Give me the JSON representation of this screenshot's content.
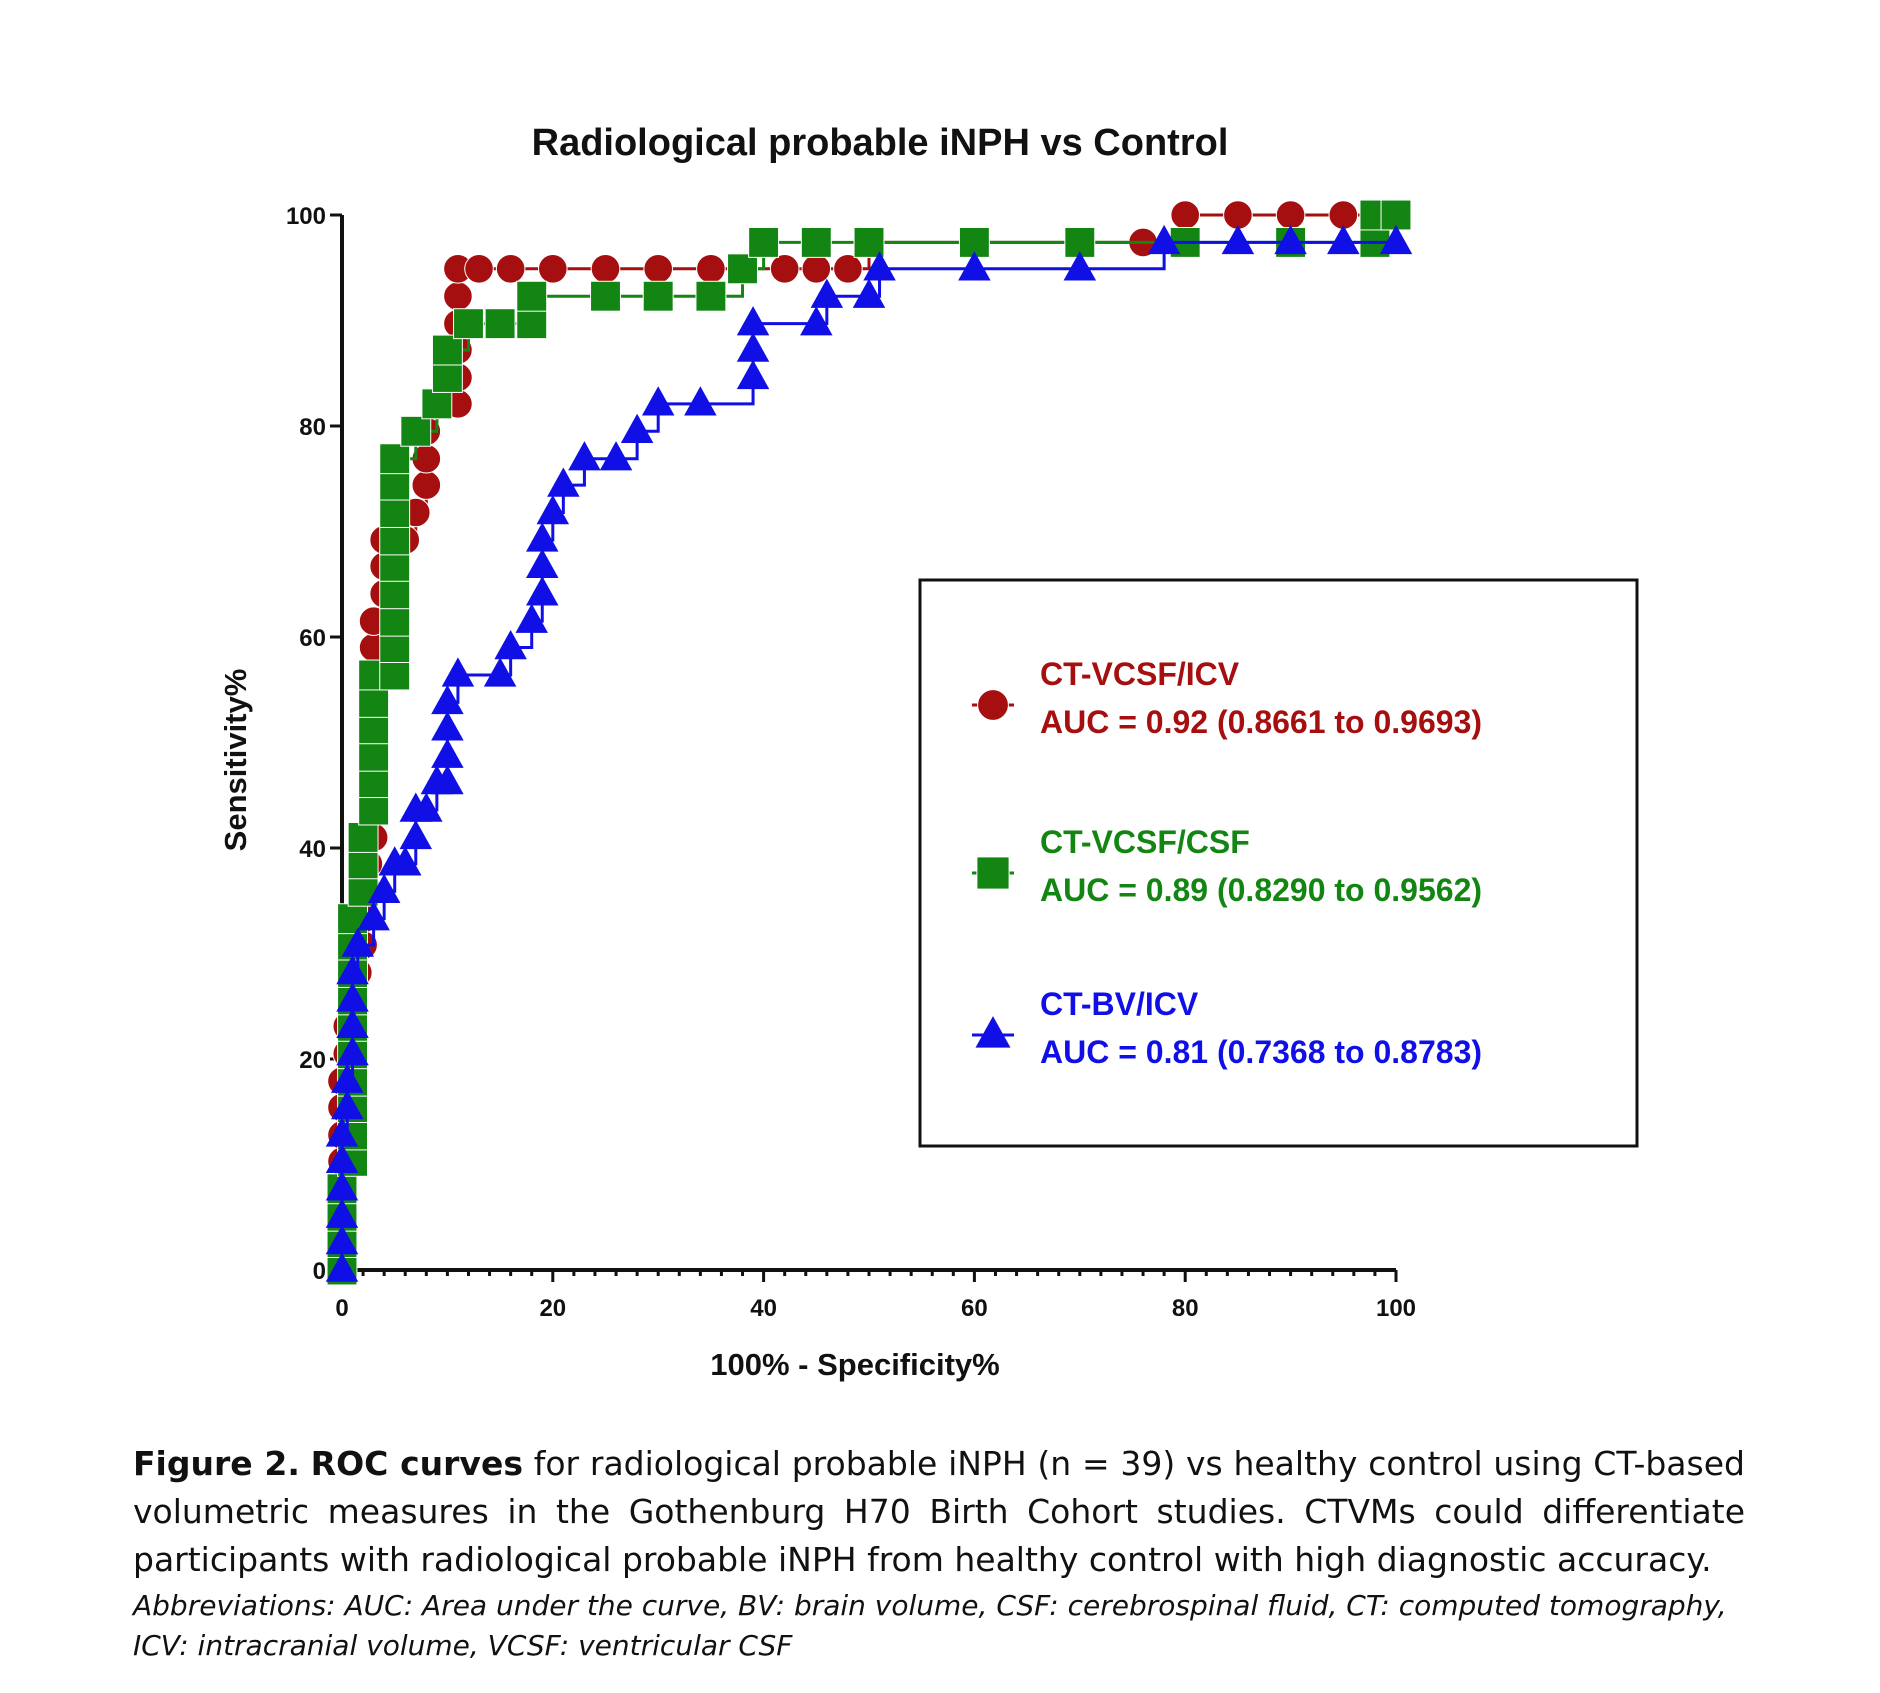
{
  "chart_data": {
    "type": "line",
    "title": "Radiological probable iNPH vs Control",
    "xlabel": "100% - Specificity%",
    "ylabel": "Sensitivity%",
    "xlim": [
      0,
      100
    ],
    "ylim": [
      0,
      100
    ],
    "xticks": [
      "0",
      "20",
      "40",
      "60",
      "80",
      "100"
    ],
    "yticks": [
      "0",
      "20",
      "40",
      "60",
      "80",
      "100"
    ],
    "grid": false,
    "legend_position": "center-right",
    "series": [
      {
        "name": "CT-VCSF/ICV",
        "auc": "AUC = 0.92 (0.8661 to 0.9693)",
        "color": "#A50F0F",
        "marker": "circle",
        "points": [
          [
            0,
            0
          ],
          [
            0,
            2.6
          ],
          [
            0,
            5.1
          ],
          [
            0,
            7.7
          ],
          [
            0,
            10.3
          ],
          [
            0,
            12.8
          ],
          [
            0,
            15.4
          ],
          [
            0,
            17.9
          ],
          [
            0.5,
            20.5
          ],
          [
            0.5,
            23.1
          ],
          [
            1,
            25.6
          ],
          [
            1.5,
            28.2
          ],
          [
            2,
            30.8
          ],
          [
            2,
            33.3
          ],
          [
            2.5,
            35.9
          ],
          [
            2.5,
            38.5
          ],
          [
            3,
            41
          ],
          [
            3,
            43.6
          ],
          [
            3,
            46.2
          ],
          [
            3,
            48.7
          ],
          [
            3,
            51.3
          ],
          [
            3,
            53.8
          ],
          [
            3,
            56.4
          ],
          [
            3,
            59
          ],
          [
            3,
            61.5
          ],
          [
            4,
            64.1
          ],
          [
            4,
            66.7
          ],
          [
            4,
            69.2
          ],
          [
            6,
            69.2
          ],
          [
            7,
            71.8
          ],
          [
            8,
            74.4
          ],
          [
            8,
            76.9
          ],
          [
            8,
            79.5
          ],
          [
            9,
            82.1
          ],
          [
            11,
            82.1
          ],
          [
            11,
            84.6
          ],
          [
            11,
            87.2
          ],
          [
            11,
            89.7
          ],
          [
            11,
            92.3
          ],
          [
            11,
            94.9
          ],
          [
            13,
            94.9
          ],
          [
            16,
            94.9
          ],
          [
            20,
            94.9
          ],
          [
            25,
            94.9
          ],
          [
            30,
            94.9
          ],
          [
            35,
            94.9
          ],
          [
            38,
            94.9
          ],
          [
            42,
            94.9
          ],
          [
            45,
            94.9
          ],
          [
            48,
            94.9
          ],
          [
            50,
            97.4
          ],
          [
            60,
            97.4
          ],
          [
            70,
            97.4
          ],
          [
            76,
            97.4
          ],
          [
            80,
            100
          ],
          [
            85,
            100
          ],
          [
            90,
            100
          ],
          [
            95,
            100
          ],
          [
            100,
            100
          ]
        ]
      },
      {
        "name": "CT-VCSF/CSF",
        "auc": "AUC = 0.89 (0.8290 to 0.9562)",
        "color": "#138513",
        "marker": "square",
        "points": [
          [
            0,
            0
          ],
          [
            0,
            2.6
          ],
          [
            0,
            5.1
          ],
          [
            0,
            7.7
          ],
          [
            1,
            10.3
          ],
          [
            1,
            12.8
          ],
          [
            1,
            15.4
          ],
          [
            1,
            17.9
          ],
          [
            1,
            20.5
          ],
          [
            1,
            23.1
          ],
          [
            1,
            25.6
          ],
          [
            1,
            28.2
          ],
          [
            1,
            30.8
          ],
          [
            1,
            33.3
          ],
          [
            2,
            35.9
          ],
          [
            2,
            38.5
          ],
          [
            2,
            41
          ],
          [
            3,
            43.6
          ],
          [
            3,
            46.2
          ],
          [
            3,
            48.7
          ],
          [
            3,
            51.3
          ],
          [
            3,
            53.8
          ],
          [
            3,
            56.4
          ],
          [
            5,
            56.4
          ],
          [
            5,
            59
          ],
          [
            5,
            61.5
          ],
          [
            5,
            64.1
          ],
          [
            5,
            66.7
          ],
          [
            5,
            69.2
          ],
          [
            5,
            71.8
          ],
          [
            5,
            74.4
          ],
          [
            5,
            76.9
          ],
          [
            7,
            79.5
          ],
          [
            9,
            82.1
          ],
          [
            10,
            84.6
          ],
          [
            10,
            87.2
          ],
          [
            12,
            89.7
          ],
          [
            15,
            89.7
          ],
          [
            18,
            89.7
          ],
          [
            18,
            92.3
          ],
          [
            25,
            92.3
          ],
          [
            30,
            92.3
          ],
          [
            35,
            92.3
          ],
          [
            38,
            94.9
          ],
          [
            40,
            97.4
          ],
          [
            45,
            97.4
          ],
          [
            50,
            97.4
          ],
          [
            60,
            97.4
          ],
          [
            70,
            97.4
          ],
          [
            80,
            97.4
          ],
          [
            90,
            97.4
          ],
          [
            98,
            97.4
          ],
          [
            98,
            100
          ],
          [
            100,
            100
          ]
        ]
      },
      {
        "name": "CT-BV/ICV",
        "auc": "AUC = 0.81 (0.7368 to 0.8783)",
        "color": "#1010E6",
        "marker": "triangle",
        "points": [
          [
            0,
            0
          ],
          [
            0,
            2.6
          ],
          [
            0,
            5.1
          ],
          [
            0,
            7.7
          ],
          [
            0,
            10.3
          ],
          [
            0,
            12.8
          ],
          [
            0.5,
            15.4
          ],
          [
            0.5,
            17.9
          ],
          [
            1,
            20.5
          ],
          [
            1,
            23.1
          ],
          [
            1,
            25.6
          ],
          [
            1,
            28.2
          ],
          [
            1.5,
            30.8
          ],
          [
            3,
            33.3
          ],
          [
            4,
            35.9
          ],
          [
            5,
            38.5
          ],
          [
            6,
            38.5
          ],
          [
            7,
            41
          ],
          [
            7,
            43.6
          ],
          [
            8,
            43.6
          ],
          [
            9,
            46.2
          ],
          [
            10,
            46.2
          ],
          [
            10,
            48.7
          ],
          [
            10,
            51.3
          ],
          [
            10,
            53.8
          ],
          [
            11,
            56.4
          ],
          [
            15,
            56.4
          ],
          [
            16,
            59
          ],
          [
            18,
            61.5
          ],
          [
            19,
            64.1
          ],
          [
            19,
            66.7
          ],
          [
            19,
            69.2
          ],
          [
            20,
            71.8
          ],
          [
            21,
            74.4
          ],
          [
            23,
            76.9
          ],
          [
            26,
            76.9
          ],
          [
            28,
            79.5
          ],
          [
            30,
            82.1
          ],
          [
            34,
            82.1
          ],
          [
            39,
            84.6
          ],
          [
            39,
            87.2
          ],
          [
            39,
            89.7
          ],
          [
            45,
            89.7
          ],
          [
            46,
            92.3
          ],
          [
            50,
            92.3
          ],
          [
            51,
            94.9
          ],
          [
            60,
            94.9
          ],
          [
            70,
            94.9
          ],
          [
            78,
            97.4
          ],
          [
            85,
            97.4
          ],
          [
            90,
            97.4
          ],
          [
            95,
            97.4
          ],
          [
            100,
            97.4
          ]
        ]
      }
    ]
  },
  "caption": {
    "label": "Figure 2.",
    "bold_phrase": "ROC curves",
    "text": "for radiological probable iNPH (n = 39) vs healthy control using CT-based volumetric measures in the Gothenburg H70 Birth Cohort studies. CTVMs could differentiate participants with radiological probable iNPH from healthy control with high diagnostic accuracy.",
    "abbreviations": "Abbreviations: AUC: Area under the curve, BV: brain volume, CSF: cerebrospinal fluid, CT: computed tomography, ICV: intracranial volume, VCSF: ventricular CSF"
  }
}
